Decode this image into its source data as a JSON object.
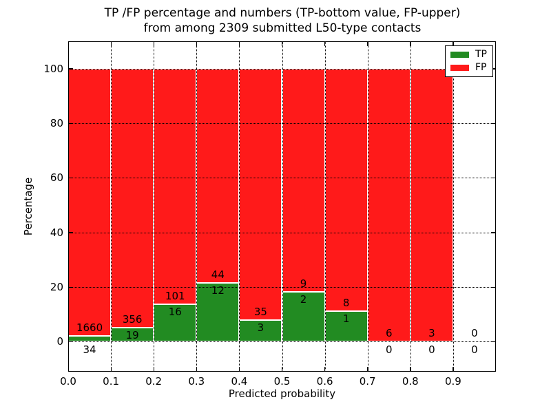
{
  "figure": {
    "title_line1": "TP /FP percentage and numbers (TP-bottom value, FP-upper)",
    "title_line2": "from among 2309 submitted L50-type contacts"
  },
  "chart_data": {
    "type": "bar",
    "stacked": true,
    "title": "TP /FP percentage and numbers (TP-bottom value, FP-upper) from among 2309 submitted L50-type contacts",
    "xlabel": "Predicted probability",
    "ylabel": "Percentage",
    "total_contacts": 2309,
    "xlim": [
      0.0,
      1.0
    ],
    "ylim": [
      -11,
      110
    ],
    "x_ticks": [
      0.0,
      0.1,
      0.2,
      0.3,
      0.4,
      0.5,
      0.6,
      0.7,
      0.8,
      0.9
    ],
    "x_tick_labels": [
      "0.0",
      "0.1",
      "0.2",
      "0.3",
      "0.4",
      "0.5",
      "0.6",
      "0.7",
      "0.8",
      "0.9"
    ],
    "y_ticks": [
      0,
      20,
      40,
      60,
      80,
      100
    ],
    "y_tick_labels": [
      "0",
      "20",
      "40",
      "60",
      "80",
      "100"
    ],
    "grid": "dotted",
    "bar_width": 0.1,
    "colors": {
      "tp": "#228b22",
      "fp": "#ff1a1a",
      "bar_edge": "#ffffff"
    },
    "legend": {
      "position": "upper right",
      "entries": [
        {
          "label": "TP",
          "color": "#228b22"
        },
        {
          "label": "FP",
          "color": "#ff1a1a"
        }
      ]
    },
    "bins": [
      {
        "range": [
          0.0,
          0.1
        ],
        "tp": 34,
        "fp": 1660,
        "tp_pct": 2.01,
        "fp_pct": 97.99,
        "has_bar": true
      },
      {
        "range": [
          0.1,
          0.2
        ],
        "tp": 19,
        "fp": 356,
        "tp_pct": 5.07,
        "fp_pct": 94.93,
        "has_bar": true
      },
      {
        "range": [
          0.2,
          0.3
        ],
        "tp": 16,
        "fp": 101,
        "tp_pct": 13.68,
        "fp_pct": 86.32,
        "has_bar": true
      },
      {
        "range": [
          0.3,
          0.4
        ],
        "tp": 12,
        "fp": 44,
        "tp_pct": 21.43,
        "fp_pct": 78.57,
        "has_bar": true
      },
      {
        "range": [
          0.4,
          0.5
        ],
        "tp": 3,
        "fp": 35,
        "tp_pct": 7.89,
        "fp_pct": 92.11,
        "has_bar": true
      },
      {
        "range": [
          0.5,
          0.6
        ],
        "tp": 2,
        "fp": 9,
        "tp_pct": 18.18,
        "fp_pct": 81.82,
        "has_bar": true
      },
      {
        "range": [
          0.6,
          0.7
        ],
        "tp": 1,
        "fp": 8,
        "tp_pct": 11.11,
        "fp_pct": 88.89,
        "has_bar": true
      },
      {
        "range": [
          0.7,
          0.8
        ],
        "tp": 0,
        "fp": 6,
        "tp_pct": 0,
        "fp_pct": 100,
        "has_bar": true
      },
      {
        "range": [
          0.8,
          0.9
        ],
        "tp": 0,
        "fp": 3,
        "tp_pct": 0,
        "fp_pct": 100,
        "has_bar": true
      },
      {
        "range": [
          0.9,
          1.0
        ],
        "tp": 0,
        "fp": 0,
        "tp_pct": 0,
        "fp_pct": 0,
        "has_bar": false
      }
    ]
  }
}
